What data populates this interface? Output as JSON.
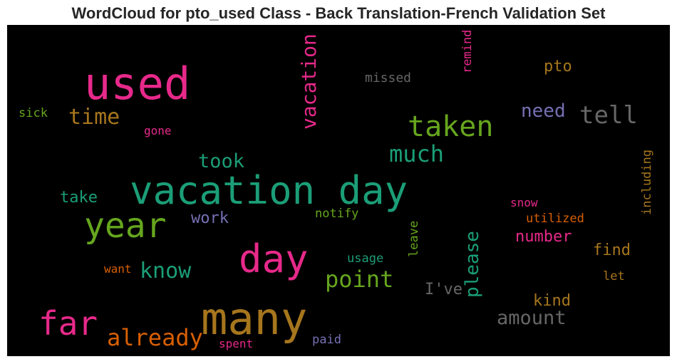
{
  "chart_data": {
    "type": "wordcloud",
    "title": "WordCloud for pto_used Class - Back Translation-French Validation Set",
    "background": "#000000",
    "words": [
      {
        "text": "used",
        "color": "#e7298a"
      },
      {
        "text": "vacation day",
        "color": "#1b9e77"
      },
      {
        "text": "many",
        "color": "#a6761d"
      },
      {
        "text": "day",
        "color": "#e7298a"
      },
      {
        "text": "year",
        "color": "#66a61e"
      },
      {
        "text": "taken",
        "color": "#66a61e"
      },
      {
        "text": "far",
        "color": "#e7298a"
      },
      {
        "text": "vacation",
        "color": "#e7298a"
      },
      {
        "text": "much",
        "color": "#1b9e77"
      },
      {
        "text": "already",
        "color": "#d95f02"
      },
      {
        "text": "time",
        "color": "#a6761d"
      },
      {
        "text": "tell",
        "color": "#666666"
      },
      {
        "text": "know",
        "color": "#1b9e77"
      },
      {
        "text": "point",
        "color": "#66a61e"
      },
      {
        "text": "amount",
        "color": "#666666"
      },
      {
        "text": "took",
        "color": "#1b9e77"
      },
      {
        "text": "please",
        "color": "#1b9e77"
      },
      {
        "text": "need",
        "color": "#7570b3"
      },
      {
        "text": "pto",
        "color": "#a6761d"
      },
      {
        "text": "number",
        "color": "#e7298a"
      },
      {
        "text": "work",
        "color": "#7570b3"
      },
      {
        "text": "take",
        "color": "#1b9e77"
      },
      {
        "text": "I've",
        "color": "#666666"
      },
      {
        "text": "kind",
        "color": "#a6761d"
      },
      {
        "text": "find",
        "color": "#a6761d"
      },
      {
        "text": "missed",
        "color": "#666666"
      },
      {
        "text": "remind",
        "color": "#e7298a"
      },
      {
        "text": "sick",
        "color": "#66a61e"
      },
      {
        "text": "gone",
        "color": "#e7298a"
      },
      {
        "text": "including",
        "color": "#a6761d"
      },
      {
        "text": "utilized",
        "color": "#d95f02"
      },
      {
        "text": "snow",
        "color": "#e7298a"
      },
      {
        "text": "notify",
        "color": "#66a61e"
      },
      {
        "text": "leave",
        "color": "#66a61e"
      },
      {
        "text": "usage",
        "color": "#1b9e77"
      },
      {
        "text": "want",
        "color": "#d95f02"
      },
      {
        "text": "let",
        "color": "#a6761d"
      },
      {
        "text": "spent",
        "color": "#e7298a"
      },
      {
        "text": "paid",
        "color": "#7570b3"
      }
    ]
  }
}
